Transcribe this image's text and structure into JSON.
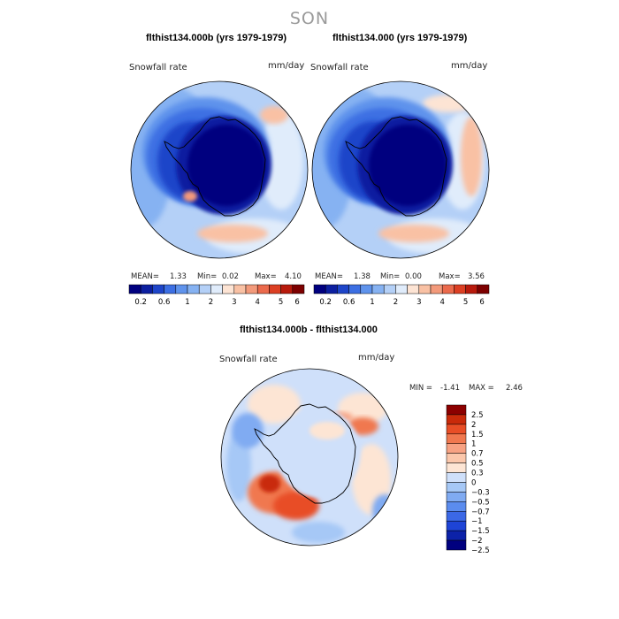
{
  "season": "SON",
  "colors": {
    "abs_scale": [
      "#00007f",
      "#0c1fa0",
      "#1e45c9",
      "#3c6fe3",
      "#5f93ec",
      "#86b2f2",
      "#b4d0f7",
      "#e0ecfb",
      "#fde4d4",
      "#f9c1a4",
      "#f39a7b",
      "#eb6a4c",
      "#dc3f23",
      "#b81a0c",
      "#7d0000"
    ],
    "diff_scale": [
      "#00007f",
      "#0c22a8",
      "#1e44d6",
      "#3b68e6",
      "#5b8cee",
      "#80abf2",
      "#a6c8f6",
      "#cfe0fa",
      "#fde5d4",
      "#fbc7ab",
      "#f7a283",
      "#f0784f",
      "#e84e26",
      "#c92a0a",
      "#8c0000"
    ]
  },
  "chart_data": [
    {
      "type": "heatmap",
      "title": "flthist134.000b (yrs 1979-1979)",
      "variable": "Snowfall rate",
      "units": "mm/day",
      "stats": {
        "mean_label": "MEAN=",
        "mean": "1.33",
        "min_label": "Min=",
        "min": "0.02",
        "max_label": "Max=",
        "max": "4.10"
      },
      "colorbar_ticks": [
        "0.2",
        "0.6",
        "1",
        "2",
        "3",
        "4",
        "5",
        "6"
      ]
    },
    {
      "type": "heatmap",
      "title": "flthist134.000 (yrs 1979-1979)",
      "variable": "Snowfall rate",
      "units": "mm/day",
      "stats": {
        "mean_label": "MEAN=",
        "mean": "1.38",
        "min_label": "Min=",
        "min": "0.00",
        "max_label": "Max=",
        "max": "3.56"
      },
      "colorbar_ticks": [
        "0.2",
        "0.6",
        "1",
        "2",
        "3",
        "4",
        "5",
        "6"
      ]
    },
    {
      "type": "heatmap",
      "title": "flthist134.000b - flthist134.000",
      "variable": "Snowfall rate",
      "units": "mm/day",
      "stats": {
        "min_label": "MIN =",
        "min": "-1.41",
        "max_label": "MAX =",
        "max": "2.46"
      },
      "colorbar_ticks": [
        "2.5",
        "2",
        "1.5",
        "1",
        "0.7",
        "0.5",
        "0.3",
        "0",
        "−0.3",
        "−0.5",
        "−0.7",
        "−1",
        "−1.5",
        "−2",
        "−2.5"
      ]
    }
  ]
}
